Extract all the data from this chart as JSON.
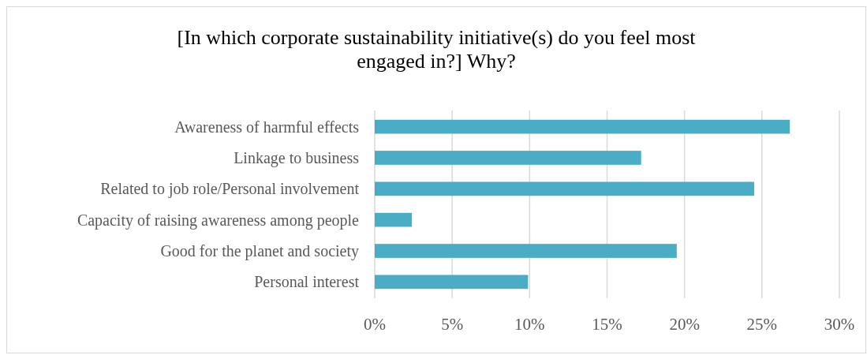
{
  "chart_data": {
    "type": "bar",
    "orientation": "horizontal",
    "title": "[In which corporate sustainability initiative(s) do you feel most engaged in?] Why?",
    "categories": [
      "Awareness of harmful effects",
      "Linkage to business",
      "Related to job role/Personal involvement",
      "Capacity of raising awareness among people",
      "Good for the planet and society",
      "Personal interest"
    ],
    "values": [
      26.8,
      17.2,
      24.5,
      2.4,
      19.5,
      9.9
    ],
    "color": "#4bacc6",
    "xlim": [
      0,
      30
    ],
    "xticks": [
      {
        "value": 0,
        "label": "0%"
      },
      {
        "value": 5,
        "label": "5%"
      },
      {
        "value": 10,
        "label": "10%"
      },
      {
        "value": 15,
        "label": "15%"
      },
      {
        "value": 20,
        "label": "20%"
      },
      {
        "value": 25,
        "label": "25%"
      },
      {
        "value": 30,
        "label": "30%"
      }
    ],
    "grid": "x"
  }
}
